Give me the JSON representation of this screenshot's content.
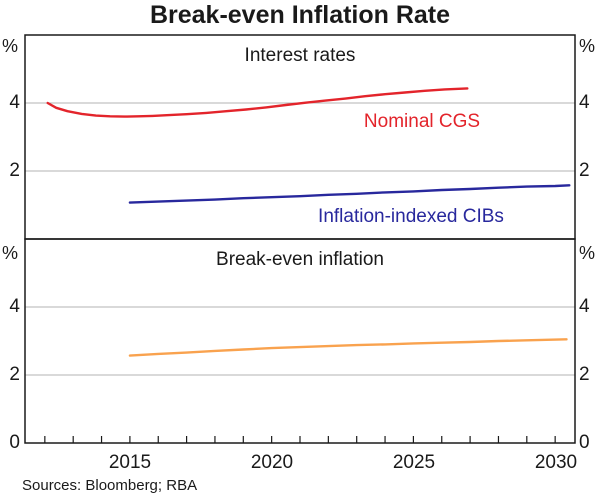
{
  "title": "Break-even Inflation Rate",
  "source": "Sources: Bloomberg; RBA",
  "unit": "%",
  "colors": {
    "frame": "#1a1a1a",
    "grid": "#b3b3b3",
    "nominal_cgs": "#e3242b",
    "inflation_indexed_cibs": "#28289d",
    "break_even": "#f9a24e"
  },
  "x_axis": {
    "range": [
      2011.3,
      2030.7
    ],
    "tick_years": [
      2012,
      2013,
      2014,
      2015,
      2016,
      2017,
      2018,
      2019,
      2020,
      2021,
      2022,
      2023,
      2024,
      2025,
      2026,
      2027,
      2028,
      2029,
      2030
    ],
    "labels": [
      "2015",
      "2020",
      "2025",
      "2030"
    ]
  },
  "chart_data": [
    {
      "type": "line",
      "title": "Interest rates",
      "ylabel_left": "%",
      "ylabel_right": "%",
      "ylim": [
        0,
        6
      ],
      "grid": true,
      "ytick_values": [
        4,
        2
      ],
      "ytick_labels": [
        "4",
        "2"
      ],
      "series": [
        {
          "name": "Nominal CGS",
          "color": "#e3242b",
          "x": [
            2012.1,
            2012.4,
            2012.8,
            2013.3,
            2013.8,
            2014.3,
            2014.8,
            2015.3,
            2015.8,
            2016.3,
            2017.0,
            2017.7,
            2018.4,
            2019.1,
            2019.8,
            2020.5,
            2021.2,
            2021.9,
            2022.6,
            2023.3,
            2024.0,
            2024.7,
            2025.4,
            2026.1,
            2026.9
          ],
          "y": [
            4.0,
            3.86,
            3.76,
            3.68,
            3.63,
            3.61,
            3.6,
            3.61,
            3.62,
            3.64,
            3.67,
            3.71,
            3.76,
            3.81,
            3.87,
            3.94,
            4.01,
            4.07,
            4.13,
            4.2,
            4.26,
            4.31,
            4.36,
            4.4,
            4.43
          ]
        },
        {
          "name": "Inflation-indexed CIBs",
          "color": "#28289d",
          "x": [
            2015.0,
            2016,
            2017,
            2018,
            2019,
            2020,
            2021,
            2022,
            2023,
            2024,
            2025,
            2026,
            2027,
            2028,
            2029,
            2030,
            2030.5
          ],
          "y": [
            1.07,
            1.1,
            1.13,
            1.16,
            1.2,
            1.23,
            1.26,
            1.3,
            1.33,
            1.37,
            1.4,
            1.44,
            1.47,
            1.51,
            1.54,
            1.56,
            1.58
          ]
        }
      ]
    },
    {
      "type": "line",
      "title": "Break-even inflation",
      "ylabel_left": "%",
      "ylabel_right": "%",
      "ylim": [
        0,
        6
      ],
      "grid": true,
      "ytick_values": [
        4,
        2,
        0
      ],
      "ytick_labels": [
        "4",
        "2",
        "0"
      ],
      "series": [
        {
          "name": "Break-even inflation",
          "color": "#f9a24e",
          "x": [
            2015.0,
            2016,
            2017,
            2018,
            2019,
            2020,
            2021,
            2022,
            2023,
            2024,
            2025,
            2026,
            2027,
            2028,
            2029,
            2030.4
          ],
          "y": [
            2.57,
            2.62,
            2.66,
            2.71,
            2.75,
            2.79,
            2.82,
            2.85,
            2.88,
            2.9,
            2.93,
            2.95,
            2.97,
            3.0,
            3.02,
            3.05
          ]
        }
      ]
    }
  ]
}
